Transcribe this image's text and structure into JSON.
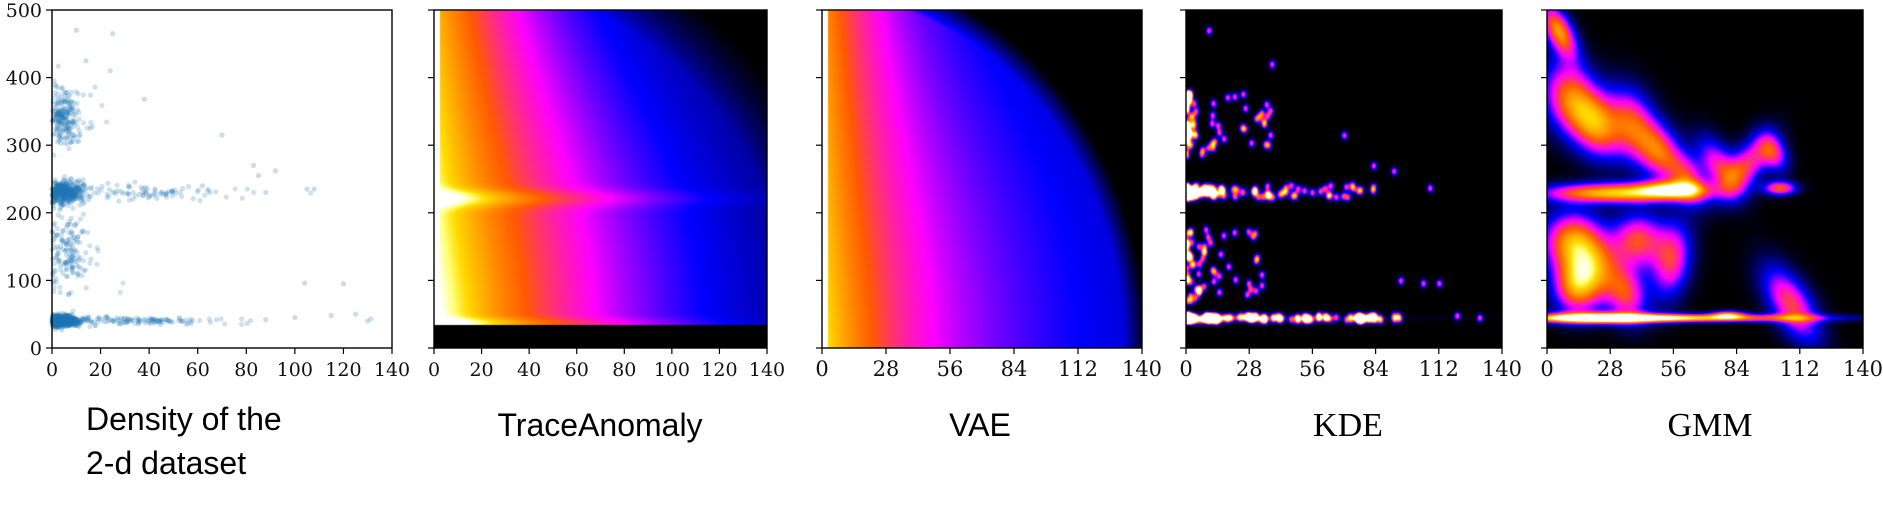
{
  "chart_data": [
    {
      "type": "scatter",
      "caption_lines": [
        "Density of the",
        "2-d dataset"
      ],
      "xlim": [
        0,
        140
      ],
      "ylim": [
        0,
        500
      ],
      "x_ticks": [
        0,
        20,
        40,
        60,
        80,
        100,
        120,
        140
      ],
      "y_ticks": [
        0,
        100,
        200,
        300,
        400,
        500
      ],
      "grid": false,
      "marker_color": "#1f77b4",
      "clusters": [
        {
          "x_center": 4,
          "x_spread": 4,
          "y_center": 40,
          "y_spread": 6,
          "count": 650
        },
        {
          "x_center": 35,
          "x_spread": 22,
          "y_center": 40,
          "y_spread": 4,
          "count": 120
        },
        {
          "x_center": 5,
          "x_spread": 5,
          "y_center": 230,
          "y_spread": 12,
          "count": 420
        },
        {
          "x_center": 40,
          "x_spread": 22,
          "y_center": 230,
          "y_spread": 8,
          "count": 80
        },
        {
          "x_center": 5,
          "x_spread": 4,
          "y_center": 340,
          "y_spread": 30,
          "count": 220
        },
        {
          "x_center": 6,
          "x_spread": 5,
          "y_center": 140,
          "y_spread": 40,
          "count": 160
        }
      ],
      "outliers": [
        [
          130,
          40
        ],
        [
          120,
          95
        ],
        [
          104,
          96
        ],
        [
          108,
          235
        ],
        [
          105,
          235
        ],
        [
          92,
          262
        ],
        [
          83,
          270
        ],
        [
          88,
          230
        ],
        [
          70,
          315
        ],
        [
          38,
          368
        ],
        [
          24,
          410
        ],
        [
          25,
          465
        ],
        [
          10,
          470
        ],
        [
          14,
          425
        ],
        [
          85,
          255
        ],
        [
          62,
          240
        ],
        [
          115,
          48
        ],
        [
          100,
          45
        ],
        [
          88,
          42
        ],
        [
          125,
          50
        ]
      ]
    },
    {
      "type": "heatmap",
      "caption": "TraceAnomaly",
      "caption_font": "sans",
      "xlim": [
        0,
        140
      ],
      "ylim": [
        0,
        500
      ],
      "x_ticks": [
        0,
        20,
        40,
        60,
        80,
        100,
        120,
        140
      ],
      "show_y_tick_labels": false,
      "colormap": "gnuplot2",
      "pattern": "broad density decaying with x, bright band at y=220, dark below y=35"
    },
    {
      "type": "heatmap",
      "caption": "VAE",
      "caption_font": "sans",
      "xlim": [
        0,
        140
      ],
      "ylim": [
        0,
        500
      ],
      "x_ticks": [
        0,
        28,
        56,
        84,
        112,
        140
      ],
      "show_y_tick_labels": false,
      "colormap": "gnuplot2",
      "pattern": "smooth density peaked at small x, black beyond a quarter-ellipse"
    },
    {
      "type": "heatmap",
      "caption": "KDE",
      "caption_font": "serif",
      "xlim": [
        0,
        140
      ],
      "ylim": [
        0,
        500
      ],
      "x_ticks": [
        0,
        28,
        56,
        84,
        112,
        140
      ],
      "show_y_tick_labels": false,
      "colormap": "gnuplot2",
      "pattern": "sparse blobs at sample locations on black, bands at y=45 and y=230"
    },
    {
      "type": "heatmap",
      "caption": "GMM",
      "caption_font": "serif",
      "xlim": [
        0,
        140
      ],
      "ylim": [
        0,
        500
      ],
      "x_ticks": [
        0,
        28,
        56,
        84,
        112,
        140
      ],
      "show_y_tick_labels": false,
      "colormap": "gnuplot2",
      "pattern": "overlapping elliptical gaussian components on black",
      "components": [
        {
          "x": 5,
          "y": 470,
          "rx": 4,
          "ry": 30,
          "rot": 30,
          "w": 0.7
        },
        {
          "x": 10,
          "y": 370,
          "rx": 8,
          "ry": 40,
          "rot": 20,
          "w": 0.6
        },
        {
          "x": 22,
          "y": 330,
          "rx": 7,
          "ry": 35,
          "rot": 25,
          "w": 0.6
        },
        {
          "x": 38,
          "y": 330,
          "rx": 7,
          "ry": 40,
          "rot": 20,
          "w": 0.55
        },
        {
          "x": 50,
          "y": 290,
          "rx": 6,
          "ry": 30,
          "rot": 25,
          "w": 0.5
        },
        {
          "x": 62,
          "y": 250,
          "rx": 5,
          "ry": 28,
          "rot": 30,
          "w": 0.5
        },
        {
          "x": 76,
          "y": 270,
          "rx": 5,
          "ry": 35,
          "rot": 35,
          "w": 0.45
        },
        {
          "x": 88,
          "y": 270,
          "rx": 5,
          "ry": 38,
          "rot": -40,
          "w": 0.5
        },
        {
          "x": 100,
          "y": 290,
          "rx": 4,
          "ry": 22,
          "rot": 30,
          "w": 0.45
        },
        {
          "x": 30,
          "y": 230,
          "rx": 22,
          "ry": 10,
          "rot": 0,
          "w": 0.8
        },
        {
          "x": 55,
          "y": 235,
          "rx": 10,
          "ry": 9,
          "rot": 0,
          "w": 0.6
        },
        {
          "x": 103,
          "y": 237,
          "rx": 5,
          "ry": 7,
          "rot": 0,
          "w": 0.6
        },
        {
          "x": 10,
          "y": 160,
          "rx": 9,
          "ry": 30,
          "rot": 10,
          "w": 0.6
        },
        {
          "x": 20,
          "y": 120,
          "rx": 8,
          "ry": 35,
          "rot": 15,
          "w": 0.6
        },
        {
          "x": 40,
          "y": 160,
          "rx": 8,
          "ry": 28,
          "rot": 15,
          "w": 0.55
        },
        {
          "x": 55,
          "y": 130,
          "rx": 6,
          "ry": 40,
          "rot": -10,
          "w": 0.5
        },
        {
          "x": 12,
          "y": 90,
          "rx": 7,
          "ry": 28,
          "rot": 0,
          "w": 0.55
        },
        {
          "x": 35,
          "y": 80,
          "rx": 6,
          "ry": 30,
          "rot": 20,
          "w": 0.5
        },
        {
          "x": 50,
          "y": 45,
          "rx": 45,
          "ry": 4,
          "rot": 0,
          "w": 0.9
        },
        {
          "x": 22,
          "y": 45,
          "rx": 18,
          "ry": 6,
          "rot": 0,
          "w": 0.7
        },
        {
          "x": 108,
          "y": 65,
          "rx": 6,
          "ry": 45,
          "rot": 35,
          "w": 0.55
        },
        {
          "x": 80,
          "y": 50,
          "rx": 5,
          "ry": 4,
          "rot": 0,
          "w": 0.6
        }
      ]
    }
  ]
}
